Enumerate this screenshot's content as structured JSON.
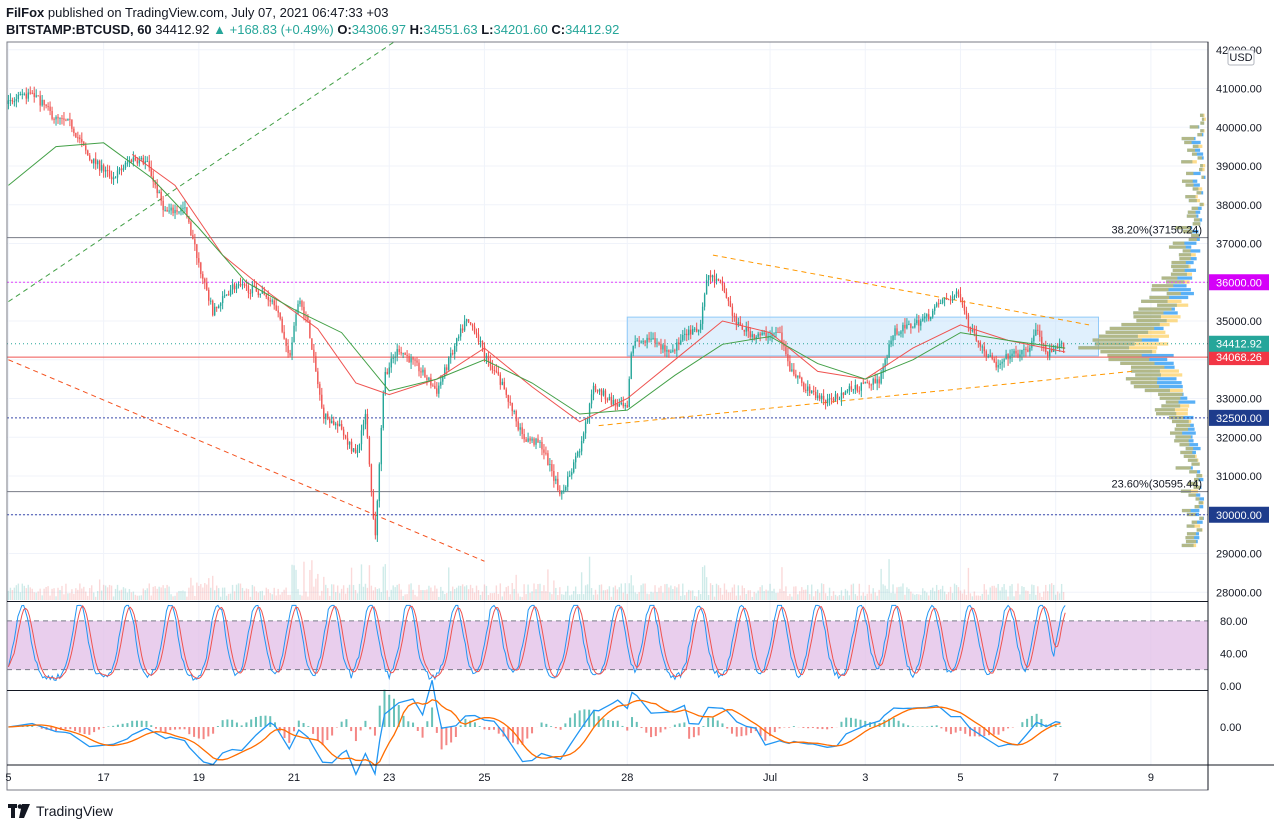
{
  "header": {
    "author": "FilFox",
    "published_text": "published on TradingView.com, July 07, 2021 06:47:33 +03",
    "symbol": "BITSTAMP:BTCUSD, 60",
    "last": "34412.92",
    "change": "▲ +168.83 (+0.49%)",
    "o_label": "O:",
    "o_val": "34306.97",
    "h_label": "H:",
    "h_val": "34551.63",
    "l_label": "L:",
    "l_val": "34201.60",
    "c_label": "C:",
    "c_val": "34412.92"
  },
  "footer": {
    "brand": "TradingView"
  },
  "colors": {
    "up": "#26a69a",
    "down": "#ef5350",
    "ema_fast": "#ef5350",
    "ema_slow": "#43a047",
    "level_magenta": "#e040fb",
    "level_blue": "#3949ab",
    "fib_gray": "#787b86",
    "box_blue": "#bbdefb",
    "vp_blue": "#2196f3",
    "vp_yellow": "#fbc02d",
    "stoch_k": "#2196f3",
    "stoch_d": "#ef5350",
    "stoch_band": "#e1bee7",
    "macd": "#2196f3",
    "signal": "#ff6d00"
  },
  "chart_data": {
    "type": "candlestick",
    "symbol": "BITSTAMP:BTCUSD",
    "interval": "60",
    "currency": "USD",
    "y_ticks": [
      28000,
      29000,
      30000,
      31000,
      32000,
      33000,
      34000,
      35000,
      36000,
      37000,
      38000,
      39000,
      40000,
      41000,
      42000
    ],
    "y_tick_labels": [
      "28000.00",
      "29000.00",
      "30000.00",
      "31000.00",
      "32000.00",
      "33000.00",
      "34000.00",
      "35000.00",
      "36000.00",
      "37000.00",
      "38000.00",
      "39000.00",
      "40000.00",
      "41000.00",
      "42000.00"
    ],
    "ylim": [
      27800,
      42200
    ],
    "x_tick_labels": [
      "5",
      "17",
      "19",
      "21",
      "23",
      "25",
      "28",
      "Jul",
      "3",
      "5",
      "7",
      "9"
    ],
    "x_tick_days": [
      15,
      17,
      19,
      21,
      23,
      25,
      28,
      31,
      33,
      35,
      37,
      39
    ],
    "xlim": [
      14.97,
      40.2
    ],
    "price_path": [
      [
        15.0,
        40600
      ],
      [
        15.5,
        40900
      ],
      [
        16.0,
        40200
      ],
      [
        16.3,
        40100
      ],
      [
        16.7,
        39200
      ],
      [
        17.2,
        38700
      ],
      [
        17.6,
        39200
      ],
      [
        17.9,
        39100
      ],
      [
        18.3,
        37800
      ],
      [
        18.7,
        37900
      ],
      [
        19.0,
        36500
      ],
      [
        19.3,
        35200
      ],
      [
        19.7,
        35900
      ],
      [
        20.2,
        35800
      ],
      [
        20.6,
        35500
      ],
      [
        20.9,
        34000
      ],
      [
        21.1,
        35600
      ],
      [
        21.3,
        34900
      ],
      [
        21.6,
        32600
      ],
      [
        22.0,
        32200
      ],
      [
        22.3,
        31500
      ],
      [
        22.5,
        32600
      ],
      [
        22.7,
        29300
      ],
      [
        22.9,
        33600
      ],
      [
        23.2,
        34300
      ],
      [
        23.6,
        33800
      ],
      [
        24.0,
        33200
      ],
      [
        24.3,
        34100
      ],
      [
        24.6,
        35000
      ],
      [
        24.8,
        34800
      ],
      [
        25.0,
        34100
      ],
      [
        25.4,
        33300
      ],
      [
        25.8,
        32000
      ],
      [
        26.2,
        31800
      ],
      [
        26.6,
        30500
      ],
      [
        27.0,
        31700
      ],
      [
        27.3,
        33300
      ],
      [
        27.7,
        32900
      ],
      [
        28.0,
        32700
      ],
      [
        28.1,
        34400
      ],
      [
        28.5,
        34500
      ],
      [
        28.9,
        34200
      ],
      [
        29.3,
        34700
      ],
      [
        29.5,
        34700
      ],
      [
        29.7,
        36200
      ],
      [
        30.0,
        35900
      ],
      [
        30.3,
        34900
      ],
      [
        30.7,
        34600
      ],
      [
        31.2,
        34700
      ],
      [
        31.4,
        33800
      ],
      [
        31.8,
        33200
      ],
      [
        32.2,
        32900
      ],
      [
        32.6,
        33200
      ],
      [
        32.9,
        33300
      ],
      [
        33.3,
        33500
      ],
      [
        33.6,
        34700
      ],
      [
        34.0,
        34900
      ],
      [
        34.3,
        35100
      ],
      [
        34.6,
        35500
      ],
      [
        35.0,
        35700
      ],
      [
        35.2,
        34800
      ],
      [
        35.5,
        34200
      ],
      [
        35.8,
        33800
      ],
      [
        36.0,
        34100
      ],
      [
        36.4,
        34200
      ],
      [
        36.6,
        34800
      ],
      [
        36.8,
        34100
      ],
      [
        37.2,
        34413
      ]
    ],
    "ema_fast_path": [
      [
        17.6,
        39300
      ],
      [
        18.5,
        38500
      ],
      [
        19.5,
        36700
      ],
      [
        20.5,
        35700
      ],
      [
        21.5,
        34800
      ],
      [
        22.3,
        33400
      ],
      [
        23.0,
        33100
      ],
      [
        24.0,
        33500
      ],
      [
        25.0,
        34300
      ],
      [
        26.0,
        33300
      ],
      [
        27.0,
        32400
      ],
      [
        28.0,
        33000
      ],
      [
        29.0,
        34000
      ],
      [
        30.0,
        35000
      ],
      [
        31.0,
        34700
      ],
      [
        32.0,
        33700
      ],
      [
        33.0,
        33500
      ],
      [
        34.0,
        34300
      ],
      [
        35.0,
        34900
      ],
      [
        36.0,
        34500
      ],
      [
        37.2,
        34200
      ]
    ],
    "ema_slow_path": [
      [
        15.0,
        38500
      ],
      [
        16.0,
        39500
      ],
      [
        17.0,
        39600
      ],
      [
        18.0,
        38700
      ],
      [
        19.0,
        37400
      ],
      [
        20.0,
        36000
      ],
      [
        21.0,
        35300
      ],
      [
        22.0,
        34700
      ],
      [
        23.0,
        33200
      ],
      [
        24.0,
        33500
      ],
      [
        25.0,
        34000
      ],
      [
        26.0,
        33400
      ],
      [
        27.0,
        32600
      ],
      [
        28.0,
        32700
      ],
      [
        29.0,
        33600
      ],
      [
        30.0,
        34400
      ],
      [
        31.0,
        34600
      ],
      [
        32.0,
        33900
      ],
      [
        33.0,
        33500
      ],
      [
        34.0,
        34000
      ],
      [
        35.0,
        34700
      ],
      [
        36.0,
        34500
      ],
      [
        37.2,
        34300
      ]
    ],
    "horizontal_levels": [
      {
        "price": 36000,
        "label": "36000.00",
        "style": "magenta-dotted"
      },
      {
        "price": 34068.26,
        "label": "34068.26",
        "style": "red-solid"
      },
      {
        "price": 32500,
        "label": "32500.00",
        "style": "blue-dotted"
      },
      {
        "price": 30000,
        "label": "30000.00",
        "style": "blue-dotted"
      }
    ],
    "last_price": {
      "price": 34412.92,
      "label": "34412.92"
    },
    "fib_levels": [
      {
        "price": 37150.24,
        "label": "38.20%(37150.24)"
      },
      {
        "price": 30595.44,
        "label": "23.60%(30595.44)"
      }
    ],
    "trendlines": [
      {
        "style": "green-dashed",
        "from": [
          15.0,
          35500
        ],
        "to": [
          23.1,
          42200
        ]
      },
      {
        "style": "red-dashed",
        "from": [
          15.0,
          34000
        ],
        "to": [
          25.0,
          28800
        ]
      },
      {
        "style": "orange-dashed",
        "from": [
          29.8,
          36700
        ],
        "to": [
          37.7,
          34900
        ]
      },
      {
        "style": "orange-dashed",
        "from": [
          27.4,
          32300
        ],
        "to": [
          38.6,
          33700
        ]
      }
    ],
    "range_box": {
      "x": [
        28.0,
        37.9
      ],
      "y": [
        34100,
        35100
      ]
    },
    "stochastic": {
      "ticks": [
        0,
        40,
        80
      ],
      "tick_labels": [
        "0.00",
        "40.00",
        "80.00"
      ],
      "band": [
        20,
        80
      ],
      "ylim": [
        -5,
        102
      ],
      "peaks_days": [
        15.3,
        16.5,
        17.5,
        18.4,
        19.4,
        20.2,
        21.0,
        21.8,
        22.6,
        23.4,
        24.4,
        25.2,
        26.0,
        26.9,
        27.8,
        28.5,
        29.5,
        30.4,
        31.2,
        32.0,
        32.9,
        33.6,
        34.4,
        35.2,
        36.0,
        36.7,
        37.2
      ]
    },
    "macd": {
      "ticks": [
        0
      ],
      "tick_labels": [
        "0.00"
      ]
    },
    "volume_profile": {
      "from_price": 29200,
      "to_price": 40300,
      "peak_price": 34300
    }
  }
}
